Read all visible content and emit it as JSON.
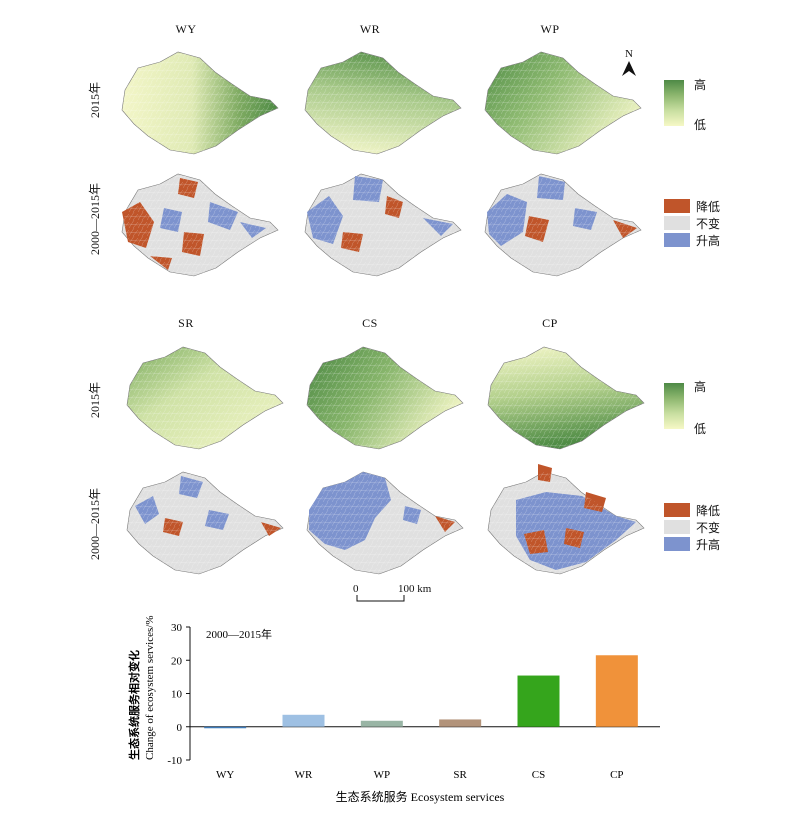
{
  "maps": {
    "top_columns": [
      "WY",
      "WR",
      "WP"
    ],
    "bottom_columns": [
      "SR",
      "CS",
      "CP"
    ],
    "row_labels": {
      "year": "2015年",
      "change": "2000—2015年"
    },
    "north_label": "N",
    "level_legend": {
      "high": "高",
      "low": "低"
    },
    "change_legend": {
      "decrease": "降低",
      "unchanged": "不变",
      "increase": "升高"
    },
    "scale_bar": {
      "start": "0",
      "end": "100 km"
    },
    "colors": {
      "decrease": "#c0552a",
      "unchanged": "#e0e0e0",
      "increase": "#7d93ce",
      "high": "#4e8a46",
      "low": "#f6f8c6"
    }
  },
  "chart_data": {
    "type": "bar",
    "annotation": "2000—2015年",
    "categories": [
      "WY",
      "WR",
      "WP",
      "SR",
      "CS",
      "CP"
    ],
    "values": [
      -0.4,
      3.6,
      1.8,
      2.2,
      15.4,
      21.5
    ],
    "colors": [
      "#3d7ab8",
      "#9ec0e3",
      "#99b5a5",
      "#b2937a",
      "#35a51c",
      "#f0923a"
    ],
    "ylim": [
      -10,
      30
    ],
    "yticks": [
      -10,
      0,
      10,
      20,
      30
    ],
    "ylabel_cn": "生态系统服务相对变化",
    "ylabel_en": "Change of ecosystem services/%",
    "xlabel": "生态系统服务 Ecosystem services"
  }
}
